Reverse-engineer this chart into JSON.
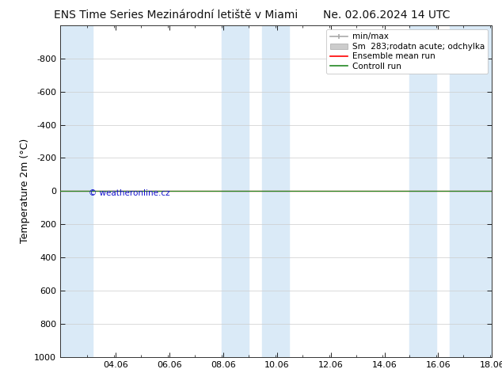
{
  "title": "ENS Time Series Mezinárodní letiště v Miami",
  "title_right": "Ne. 02.06.2024 14 UTC",
  "ylabel": "Temperature 2m (°C)",
  "xlim_min": 2.0,
  "xlim_max": 18.06,
  "ylim_top": -1000,
  "ylim_bottom": 1000,
  "yticks": [
    -800,
    -600,
    -400,
    -200,
    0,
    200,
    400,
    600,
    800,
    1000
  ],
  "xticks": [
    4.06,
    6.06,
    8.06,
    10.06,
    12.06,
    14.06,
    16.06,
    18.06
  ],
  "xtick_labels": [
    "04.06",
    "06.06",
    "08.06",
    "10.06",
    "12.06",
    "14.06",
    "16.06",
    "18.06"
  ],
  "background_color": "#ffffff",
  "plot_bg_color": "#ffffff",
  "shaded_columns": [
    [
      2.0,
      3.2
    ],
    [
      8.0,
      9.0
    ],
    [
      9.5,
      10.5
    ],
    [
      15.0,
      16.0
    ],
    [
      16.5,
      18.06
    ]
  ],
  "shaded_color": "#daeaf7",
  "grid_color": "#cccccc",
  "control_run_color": "#228822",
  "ensemble_mean_color": "#ff0000",
  "watermark": "© weatheronline.cz",
  "watermark_color": "#1111cc",
  "legend_labels": [
    "min/max",
    "Sm  283;rodatn acute; odchylka",
    "Ensemble mean run",
    "Controll run"
  ],
  "legend_colors_line": [
    "#aaaaaa",
    "#cccccc",
    "#ff0000",
    "#228822"
  ],
  "title_fontsize": 10,
  "axis_label_fontsize": 9,
  "tick_fontsize": 8,
  "legend_fontsize": 7.5
}
